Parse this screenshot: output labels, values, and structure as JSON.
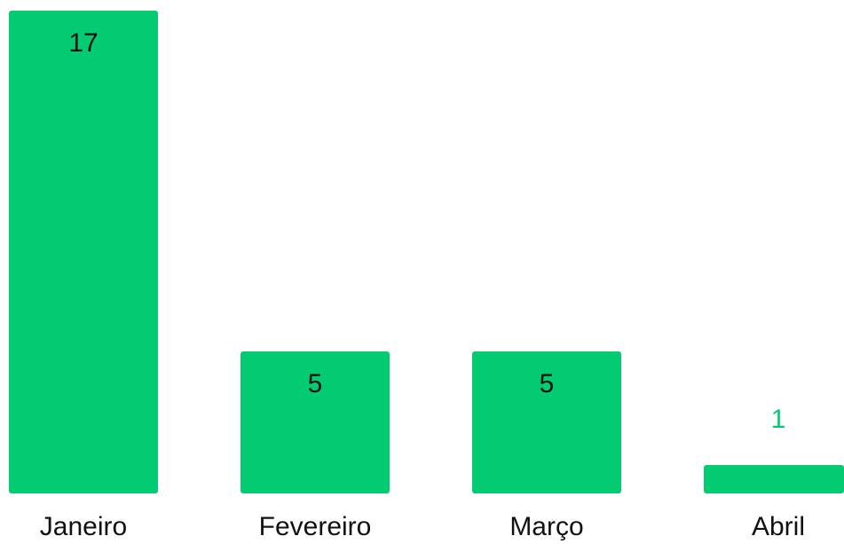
{
  "chart_data": {
    "type": "bar",
    "categories": [
      "Janeiro",
      "Fevereiro",
      "Março",
      "Abril"
    ],
    "values": [
      17,
      5,
      5,
      1
    ],
    "title": "",
    "xlabel": "",
    "ylabel": "",
    "ylim": [
      0,
      17
    ],
    "grid": false,
    "legend": "none",
    "colors": {
      "bar": "#02cb72",
      "label_inside": "#111111",
      "label_outside": "#02cb72",
      "category_text": "#111111",
      "background": "#ffffff"
    }
  }
}
